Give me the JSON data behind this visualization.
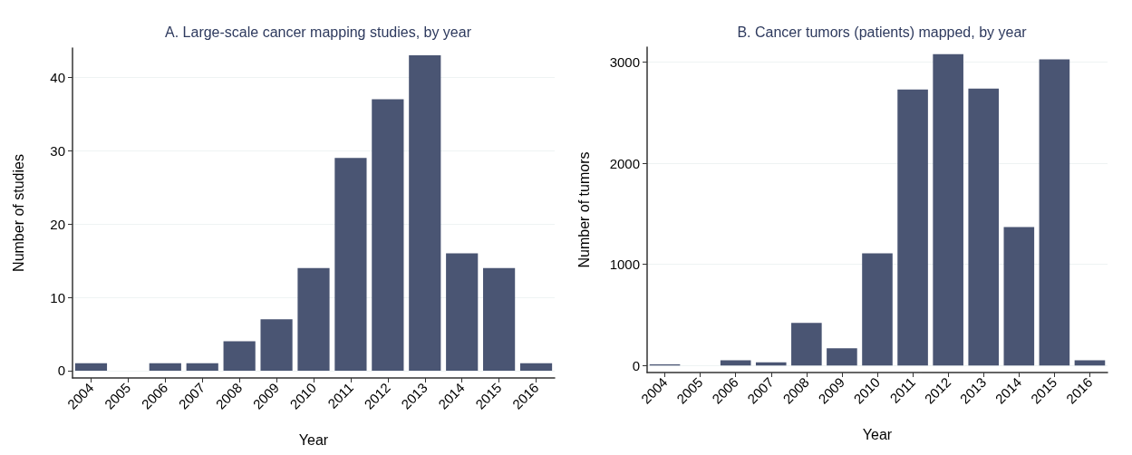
{
  "chart_data": [
    {
      "type": "bar",
      "title": "A. Large-scale cancer mapping studies, by year",
      "xlabel": "Year",
      "ylabel": "Number of studies",
      "categories": [
        "2004",
        "2005",
        "2006",
        "2007",
        "2008",
        "2009",
        "2010",
        "2011",
        "2012",
        "2013",
        "2014",
        "2015",
        "2016"
      ],
      "values": [
        1,
        null,
        1,
        1,
        4,
        7,
        14,
        29,
        37,
        43,
        16,
        14,
        1
      ],
      "color": "#4a5573",
      "ylim": [
        -1,
        44
      ],
      "yticks": [
        0,
        10,
        20,
        30,
        40
      ],
      "grid": "y"
    },
    {
      "type": "bar",
      "title": "B. Cancer tumors (patients) mapped, by year",
      "xlabel": "Year",
      "ylabel": "Number of tumors",
      "categories": [
        "2004",
        "2005",
        "2006",
        "2007",
        "2008",
        "2009",
        "2010",
        "2011",
        "2012",
        "2013",
        "2014",
        "2015",
        "2016"
      ],
      "values": [
        10,
        null,
        50,
        30,
        420,
        170,
        1110,
        2730,
        3080,
        2740,
        1370,
        3030,
        50
      ],
      "color": "#4a5573",
      "ylim": [
        -70,
        3150
      ],
      "yticks": [
        0,
        1000,
        2000,
        3000
      ],
      "grid": "y"
    }
  ]
}
